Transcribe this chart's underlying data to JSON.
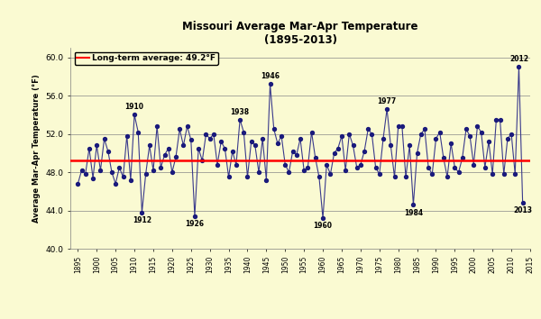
{
  "title_line1": "Missouri Average Mar-Apr Temperature",
  "title_line2": "(1895-2013)",
  "xlabel": "",
  "ylabel": "Average Mar-Apr Temperature (°F)",
  "long_term_avg": 49.2,
  "long_term_label": "Long-term average: 49.2°F",
  "ylim": [
    40.0,
    61.0
  ],
  "yticks": [
    40.0,
    44.0,
    48.0,
    52.0,
    56.0,
    60.0
  ],
  "background_color": "#FAFAD2",
  "line_color": "#3A3A8C",
  "avg_line_color": "#FF0000",
  "dot_color": "#1A1A7C",
  "annotated_years": {
    "1910": 54.0,
    "1912": 43.8,
    "1926": 43.4,
    "1938": 53.5,
    "1946": 57.2,
    "1960": 43.2,
    "1977": 54.6,
    "1984": 44.6,
    "2012": 59.0,
    "2013": 44.8
  },
  "annotation_above": [
    "1910",
    "1938",
    "1946",
    "1977",
    "2012"
  ],
  "annotation_below": [
    "1912",
    "1926",
    "1960",
    "1984",
    "2013"
  ],
  "temperatures": {
    "1895": 46.8,
    "1896": 48.2,
    "1897": 47.8,
    "1898": 50.5,
    "1899": 47.4,
    "1900": 50.8,
    "1901": 48.2,
    "1902": 51.5,
    "1903": 50.2,
    "1904": 48.0,
    "1905": 46.8,
    "1906": 48.5,
    "1907": 47.5,
    "1908": 51.8,
    "1909": 47.2,
    "1910": 54.0,
    "1911": 52.2,
    "1912": 43.8,
    "1913": 47.8,
    "1914": 50.8,
    "1915": 48.2,
    "1916": 52.8,
    "1917": 48.5,
    "1918": 49.8,
    "1919": 50.5,
    "1920": 48.0,
    "1921": 49.6,
    "1922": 52.5,
    "1923": 50.8,
    "1924": 52.8,
    "1925": 51.4,
    "1926": 43.4,
    "1927": 50.5,
    "1928": 49.2,
    "1929": 52.0,
    "1930": 51.5,
    "1931": 52.0,
    "1932": 48.8,
    "1933": 51.2,
    "1934": 50.5,
    "1935": 47.5,
    "1936": 50.2,
    "1937": 48.8,
    "1938": 53.5,
    "1939": 52.2,
    "1940": 47.5,
    "1941": 51.2,
    "1942": 50.8,
    "1943": 48.0,
    "1944": 51.5,
    "1945": 47.2,
    "1946": 57.2,
    "1947": 52.5,
    "1948": 51.0,
    "1949": 51.8,
    "1950": 48.8,
    "1951": 48.0,
    "1952": 50.2,
    "1953": 49.8,
    "1954": 51.5,
    "1955": 48.2,
    "1956": 48.5,
    "1957": 52.2,
    "1958": 49.5,
    "1959": 47.5,
    "1960": 43.2,
    "1961": 48.8,
    "1962": 47.8,
    "1963": 50.0,
    "1964": 50.5,
    "1965": 51.8,
    "1966": 48.2,
    "1967": 52.0,
    "1968": 50.8,
    "1969": 48.5,
    "1970": 48.8,
    "1971": 50.2,
    "1972": 52.5,
    "1973": 52.0,
    "1974": 48.5,
    "1975": 47.8,
    "1976": 51.5,
    "1977": 54.6,
    "1978": 50.8,
    "1979": 47.5,
    "1980": 52.8,
    "1981": 52.8,
    "1982": 47.5,
    "1983": 50.8,
    "1984": 44.6,
    "1985": 50.0,
    "1986": 52.0,
    "1987": 52.5,
    "1988": 48.5,
    "1989": 47.8,
    "1990": 51.5,
    "1991": 52.2,
    "1992": 49.5,
    "1993": 47.5,
    "1994": 51.0,
    "1995": 48.5,
    "1996": 48.0,
    "1997": 49.5,
    "1998": 52.5,
    "1999": 51.8,
    "2000": 48.8,
    "2001": 52.8,
    "2002": 52.2,
    "2003": 48.5,
    "2004": 51.2,
    "2005": 47.8,
    "2006": 53.5,
    "2007": 53.5,
    "2008": 47.8,
    "2009": 51.5,
    "2010": 52.0,
    "2011": 47.8,
    "2012": 59.0,
    "2013": 44.8
  }
}
